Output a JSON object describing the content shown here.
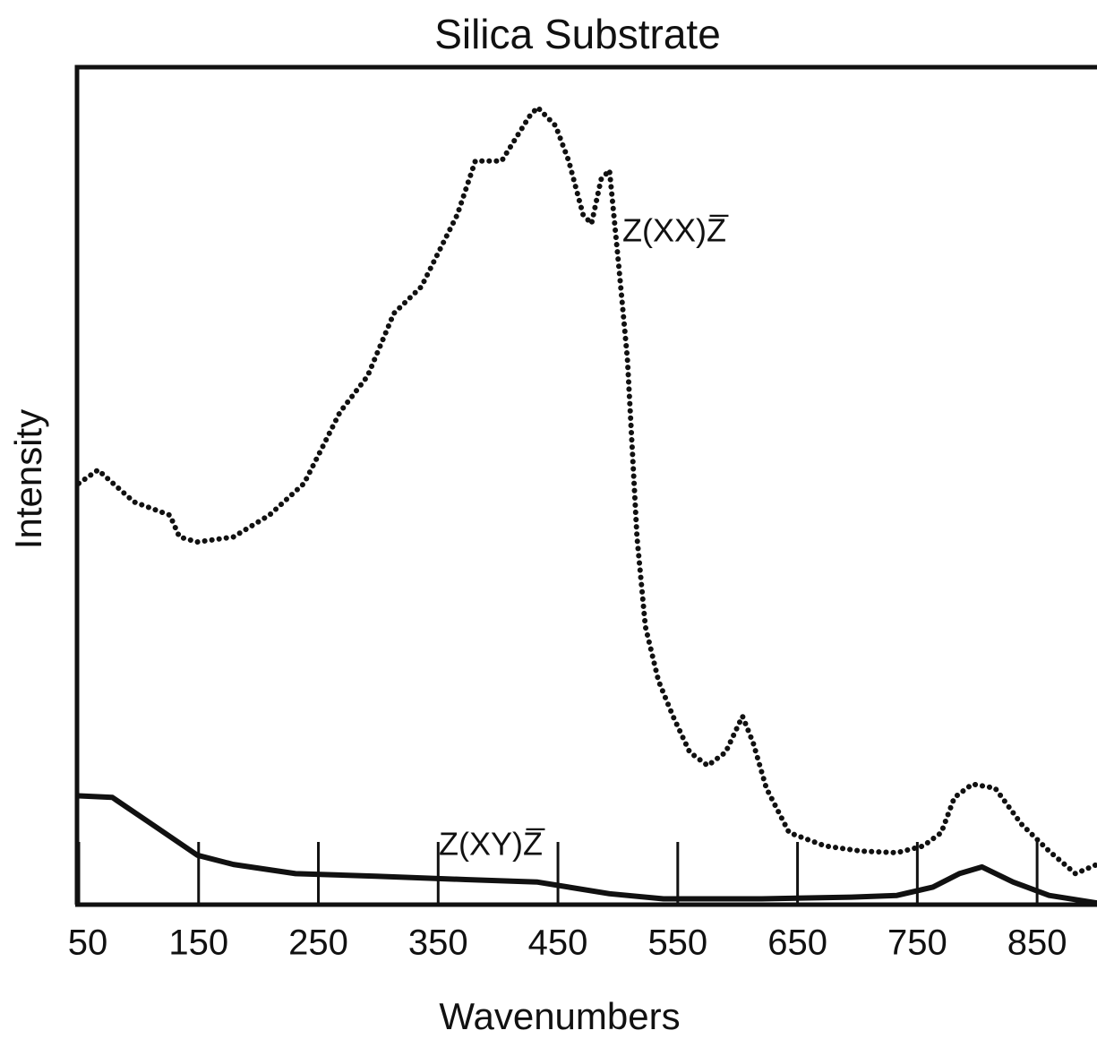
{
  "chart_data": {
    "type": "line",
    "title": "Silica Substrate",
    "x_label": "Wavenumbers",
    "y_label": "Intensity",
    "xlim": [
      50,
      900
    ],
    "ylim": [
      0,
      100
    ],
    "xticks": [
      50,
      150,
      250,
      350,
      450,
      550,
      650,
      750,
      850
    ],
    "annotations": [
      "Z(XX)Z̅",
      "Z(XY)Z̅"
    ],
    "series": [
      {
        "name": "Z(XX)Z̅",
        "color": "#111111",
        "style": "dotted",
        "x": [
          50,
          66,
          96,
          126,
          134,
          149,
          179,
          209,
          238,
          253,
          268,
          291,
          313,
          336,
          351,
          366,
          381,
          403,
          426,
          433,
          448,
          459,
          471,
          478,
          486,
          493,
          501,
          508,
          516,
          523,
          534,
          546,
          560,
          575,
          590,
          604,
          613,
          624,
          643,
          673,
          703,
          733,
          755,
          770,
          781,
          796,
          815,
          837,
          860,
          882,
          900
        ],
        "values": [
          50.3,
          51.9,
          48.1,
          46.5,
          43.9,
          43.3,
          43.9,
          46.5,
          50.3,
          54.5,
          58.8,
          63.1,
          70.6,
          73.8,
          78.1,
          82.4,
          88.8,
          88.8,
          94.1,
          95.2,
          93.0,
          88.8,
          82.4,
          81.3,
          86.6,
          87.7,
          75.9,
          65.2,
          43.9,
          33.2,
          26.7,
          22.5,
          18.2,
          16.6,
          18.2,
          22.5,
          19.3,
          13.9,
          8.6,
          7.0,
          6.4,
          6.2,
          7.0,
          8.6,
          12.8,
          14.4,
          13.9,
          9.6,
          6.4,
          3.7,
          4.8
        ]
      },
      {
        "name": "Z(XY)Z̅",
        "color": "#111111",
        "style": "solid",
        "x": [
          50,
          78,
          111,
          149,
          179,
          231,
          298,
          373,
          433,
          493,
          538,
          620,
          695,
          733,
          763,
          785,
          804,
          830,
          860,
          900
        ],
        "values": [
          13.0,
          12.8,
          9.6,
          5.9,
          4.8,
          3.7,
          3.4,
          3.0,
          2.7,
          1.3,
          0.7,
          0.7,
          0.9,
          1.1,
          2.1,
          3.7,
          4.5,
          2.7,
          1.1,
          0.2
        ]
      }
    ]
  }
}
